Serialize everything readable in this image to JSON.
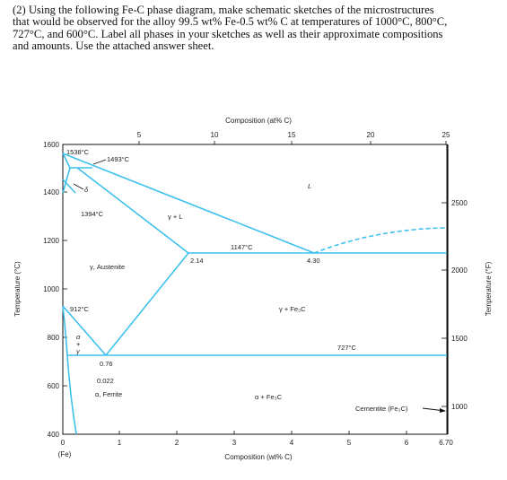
{
  "question": {
    "lines": [
      "(2) Using the following Fe-C phase diagram, make schematic sketches of the microstructures",
      "that would be observed for the alloy 99.5 wt% Fe-0.5 wt% C at temperatures of 1000°C, 800°C,",
      "727°C, and 600°C. Label all phases in your sketches as well as their approximate compositions",
      "and amounts. Use the attached answer sheet."
    ]
  },
  "diagram": {
    "top_axis_title": "Composition (at% C)",
    "top_ticks": [
      "5",
      "10",
      "15",
      "20",
      "25"
    ],
    "bottom_axis_title": "Composition (wt% C)",
    "bottom_ticks": [
      "0",
      "1",
      "2",
      "3",
      "4",
      "5",
      "6",
      "6.70"
    ],
    "bottom_sub": "(Fe)",
    "left_axis_title": "Temperature (°C)",
    "left_ticks": [
      "1600",
      "1400",
      "1200",
      "1000",
      "800",
      "600",
      "400"
    ],
    "right_axis_title": "Temperature (°F)",
    "right_ticks": [
      "2500",
      "2000",
      "1500",
      "1000"
    ],
    "line_color": "#3ec1ec",
    "labels": {
      "t1538": "1538°C",
      "t1493": "1493°C",
      "t1394": "1394°C",
      "t1147": "1147°C",
      "t912": "912°C",
      "t727": "727°C",
      "delta": "δ",
      "L": "L",
      "gamma_L": "γ + L",
      "austenite": "γ, Austenite",
      "c214": "2.14",
      "c430": "4.30",
      "c076": "0.76",
      "c0022": "0.022",
      "ferrite": "α, Ferrite",
      "gamma_fe3c": "γ + Fe₃C",
      "alpha_fe3c": "α + Fe₃C",
      "cementite": "Cementite (Fe₃C)",
      "alpha_small": "α",
      "plus_small": "+",
      "gamma_small": "γ"
    }
  }
}
